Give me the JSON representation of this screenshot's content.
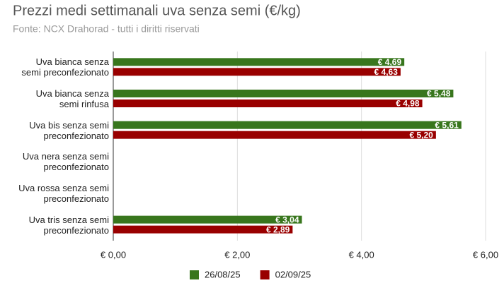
{
  "chart_data": {
    "type": "bar",
    "orientation": "horizontal",
    "title": "Prezzi medi settimanali uva senza semi (€/kg)",
    "subtitle": "Fonte: NCX Drahorad - tutti i diritti riservati",
    "categories": [
      "Uva bianca senza semi preconfezionato",
      "Uva bianca senza semi rinfusa",
      "Uva bis senza semi preconfezionato",
      "Uva nera senza semi preconfezionato",
      "Uva rossa senza semi preconfezionato",
      "Uva tris senza semi preconfezionato"
    ],
    "series": [
      {
        "name": "26/08/25",
        "color": "#38761d",
        "values": [
          4.69,
          5.48,
          5.61,
          null,
          null,
          3.04
        ],
        "value_labels": [
          "€ 4,69",
          "€ 5,48",
          "€ 5,61",
          null,
          null,
          "€ 3,04"
        ]
      },
      {
        "name": "02/09/25",
        "color": "#990000",
        "values": [
          4.63,
          4.98,
          5.2,
          null,
          null,
          2.89
        ],
        "value_labels": [
          "€ 4,63",
          "€ 4,98",
          "€ 5,20",
          null,
          null,
          "€ 2,89"
        ]
      }
    ],
    "xlim": [
      0,
      6
    ],
    "xticks": [
      {
        "value": 0,
        "label": "€ 0,00"
      },
      {
        "value": 2,
        "label": "€ 2,00"
      },
      {
        "value": 4,
        "label": "€ 4,00"
      },
      {
        "value": 6,
        "label": "€ 6,00"
      }
    ],
    "grid": true,
    "legend": "bottom"
  }
}
